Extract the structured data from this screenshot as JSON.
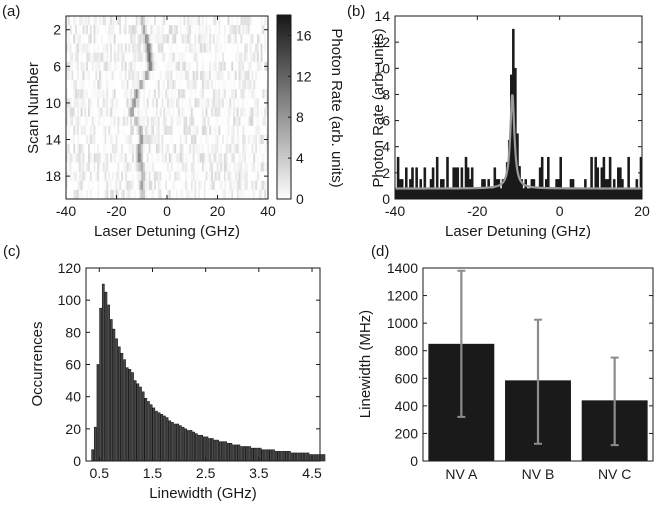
{
  "colors": {
    "ink": "#1a1a1a",
    "fit": "#9a9a9a",
    "errorbar": "#8c8c8c"
  },
  "chart_data": [
    {
      "panel": "(a)",
      "type": "heatmap",
      "xlabel": "Laser Detuning (GHz)",
      "ylabel": "Scan Number",
      "xlim": [
        -40,
        40
      ],
      "ylim": [
        1,
        20
      ],
      "xticks": [
        "-40",
        "-20",
        "0",
        "20",
        "40"
      ],
      "yticks": [
        "2",
        "6",
        "10",
        "14",
        "18"
      ],
      "colorbar": {
        "label": "Photon Rate (arb. units)",
        "range": [
          0,
          18
        ],
        "ticks": [
          "16",
          "12",
          "8",
          "4",
          "0"
        ]
      },
      "peaks": [
        {
          "scan": 1,
          "detuning": -9.5,
          "value": 4
        },
        {
          "scan": 2,
          "detuning": -9.0,
          "value": 5
        },
        {
          "scan": 3,
          "detuning": -8.0,
          "value": 9
        },
        {
          "scan": 4,
          "detuning": -7.5,
          "value": 10
        },
        {
          "scan": 5,
          "detuning": -7.0,
          "value": 12
        },
        {
          "scan": 6,
          "detuning": -6.5,
          "value": 10
        },
        {
          "scan": 7,
          "detuning": -8.0,
          "value": 8
        },
        {
          "scan": 8,
          "detuning": -10.0,
          "value": 6
        },
        {
          "scan": 9,
          "detuning": -12.0,
          "value": 7
        },
        {
          "scan": 10,
          "detuning": -13.0,
          "value": 9
        },
        {
          "scan": 11,
          "detuning": -14.0,
          "value": 7
        },
        {
          "scan": 12,
          "detuning": -12.0,
          "value": 5
        },
        {
          "scan": 13,
          "detuning": -10.5,
          "value": 6
        },
        {
          "scan": 14,
          "detuning": -10.0,
          "value": 7
        },
        {
          "scan": 15,
          "detuning": -11.0,
          "value": 9
        },
        {
          "scan": 16,
          "detuning": -11.0,
          "value": 10
        },
        {
          "scan": 17,
          "detuning": -10.0,
          "value": 7
        },
        {
          "scan": 18,
          "detuning": -9.5,
          "value": 6
        },
        {
          "scan": 19,
          "detuning": -10.0,
          "value": 8
        },
        {
          "scan": 20,
          "detuning": -9.5,
          "value": 5
        }
      ]
    },
    {
      "panel": "(b)",
      "type": "bar",
      "xlabel": "Laser Detuning (GHz)",
      "ylabel": "Photon Rate (arb. units)",
      "xlim": [
        -40,
        20
      ],
      "ylim": [
        0,
        14
      ],
      "xticks": [
        "-40",
        "-20",
        "0",
        "20"
      ],
      "yticks": [
        "0",
        "2",
        "4",
        "6",
        "8",
        "10",
        "12",
        "14"
      ],
      "baseline": 0.8,
      "fit": {
        "center": -11.5,
        "amplitude": 7.2,
        "fwhm": 1.2,
        "offset": 0.8
      },
      "peak_bins": [
        {
          "x": -13.5,
          "y": 1.5
        },
        {
          "x": -13.0,
          "y": 2.8
        },
        {
          "x": -12.5,
          "y": 4.5
        },
        {
          "x": -12.0,
          "y": 9.5
        },
        {
          "x": -11.5,
          "y": 13.0
        },
        {
          "x": -11.0,
          "y": 10.0
        },
        {
          "x": -10.5,
          "y": 5.0
        },
        {
          "x": -10.0,
          "y": 2.5
        },
        {
          "x": -9.5,
          "y": 1.5
        }
      ]
    },
    {
      "panel": "(c)",
      "type": "bar",
      "xlabel": "Linewidth (GHz)",
      "ylabel": "Occurrences",
      "xlim": [
        0.25,
        4.65
      ],
      "ylim": [
        0,
        120
      ],
      "xticks": [
        "0.5",
        "1.5",
        "2.5",
        "3.5",
        "4.5"
      ],
      "yticks": [
        "0",
        "20",
        "40",
        "60",
        "80",
        "100",
        "120"
      ],
      "bin_start": 0.35,
      "bin_width": 0.05,
      "values": [
        7,
        21,
        60,
        95,
        110,
        105,
        97,
        88,
        82,
        76,
        71,
        67,
        63,
        58,
        57,
        55,
        50,
        48,
        46,
        43,
        39,
        37,
        35,
        33,
        31,
        30,
        29,
        28,
        27,
        25,
        24,
        23,
        23,
        22,
        21,
        20,
        19,
        19,
        18,
        17,
        16,
        16,
        15,
        15,
        14,
        14,
        13,
        13,
        12,
        12,
        12,
        11,
        11,
        10,
        10,
        10,
        9,
        9,
        9,
        9,
        8,
        8,
        8,
        8,
        7,
        7,
        7,
        7,
        7,
        6,
        6,
        6,
        6,
        6,
        6,
        5,
        5,
        5,
        5,
        5,
        5,
        5,
        4,
        4,
        4,
        4,
        4,
        4
      ]
    },
    {
      "panel": "(d)",
      "type": "bar",
      "categories": [
        "NV A",
        "NV B",
        "NV C"
      ],
      "values": [
        850,
        585,
        440
      ],
      "errors_low": [
        320,
        125,
        115
      ],
      "errors_high": [
        1380,
        1025,
        750
      ],
      "xlabel": "",
      "ylabel": "Linewidth (MHz)",
      "ylim": [
        0,
        1400
      ],
      "yticks": [
        "0",
        "200",
        "400",
        "600",
        "800",
        "1000",
        "1200",
        "1400"
      ]
    }
  ]
}
